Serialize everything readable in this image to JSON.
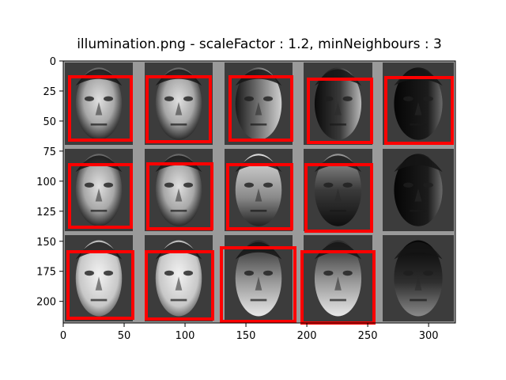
{
  "figure": {
    "title": "illumination.png - scaleFactor : 1.2, minNeighbours : 3",
    "x_ticks": [
      "0",
      "50",
      "100",
      "150",
      "200",
      "250",
      "300"
    ],
    "y_ticks": [
      "0",
      "25",
      "50",
      "75",
      "100",
      "125",
      "150",
      "175",
      "200"
    ],
    "xlim": [
      0,
      322
    ],
    "ylim": [
      218,
      0
    ],
    "grid": {
      "rows": 3,
      "cols": 5
    },
    "faces": [
      {
        "row": 0,
        "col": 0,
        "lighting": "frontal",
        "detected": true
      },
      {
        "row": 0,
        "col": 1,
        "lighting": "frontal",
        "detected": true
      },
      {
        "row": 0,
        "col": 2,
        "lighting": "left-shadow",
        "detected": true
      },
      {
        "row": 0,
        "col": 3,
        "lighting": "dark-left",
        "detected": true
      },
      {
        "row": 0,
        "col": 4,
        "lighting": "very-dark",
        "detected": true
      },
      {
        "row": 1,
        "col": 0,
        "lighting": "frontal",
        "detected": true
      },
      {
        "row": 1,
        "col": 1,
        "lighting": "frontal",
        "detected": true
      },
      {
        "row": 1,
        "col": 2,
        "lighting": "top-light",
        "detected": true
      },
      {
        "row": 1,
        "col": 3,
        "lighting": "dark-top",
        "detected": true
      },
      {
        "row": 1,
        "col": 4,
        "lighting": "very-dark",
        "detected": false
      },
      {
        "row": 2,
        "col": 0,
        "lighting": "bright",
        "detected": true
      },
      {
        "row": 2,
        "col": 1,
        "lighting": "bright",
        "detected": true
      },
      {
        "row": 2,
        "col": 2,
        "lighting": "bottom-light",
        "detected": true
      },
      {
        "row": 2,
        "col": 3,
        "lighting": "bottom-light",
        "detected": true
      },
      {
        "row": 2,
        "col": 4,
        "lighting": "very-dark-bottom",
        "detected": false
      }
    ],
    "detection_color": "#ff0000"
  }
}
